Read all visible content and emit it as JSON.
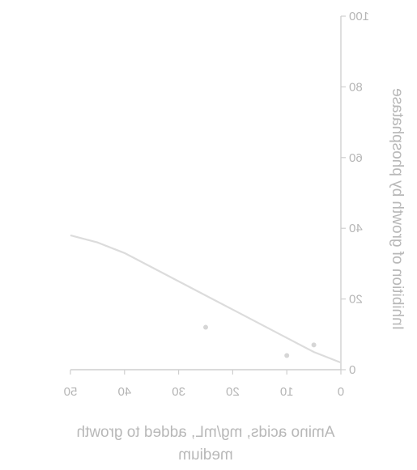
{
  "chart_data": {
    "type": "line",
    "title": "",
    "xlabel": "Amino acids, mg/mL, added to growth medium",
    "ylabel": "Inhibition of growth by phosphatase",
    "xlim": [
      0,
      50
    ],
    "ylim": [
      0,
      100
    ],
    "x_ticks": [
      0,
      10,
      20,
      30,
      40,
      50
    ],
    "y_ticks": [
      0,
      20,
      40,
      60,
      80,
      100
    ],
    "x_tick_labels": [
      "0",
      "10",
      "20",
      "30",
      "40",
      "50"
    ],
    "y_tick_labels": [
      "0",
      "20",
      "40",
      "60",
      "80",
      "100"
    ],
    "grid": false,
    "series": [
      {
        "x": [
          0,
          5,
          10,
          15,
          20,
          25,
          30,
          35,
          40,
          45,
          50
        ],
        "values": [
          2,
          5,
          9,
          13,
          17,
          21,
          25,
          29,
          33,
          36,
          38
        ]
      }
    ],
    "markers": [
      {
        "x": 5,
        "y": 7
      },
      {
        "x": 10,
        "y": 4
      },
      {
        "x": 25,
        "y": 12
      }
    ]
  }
}
